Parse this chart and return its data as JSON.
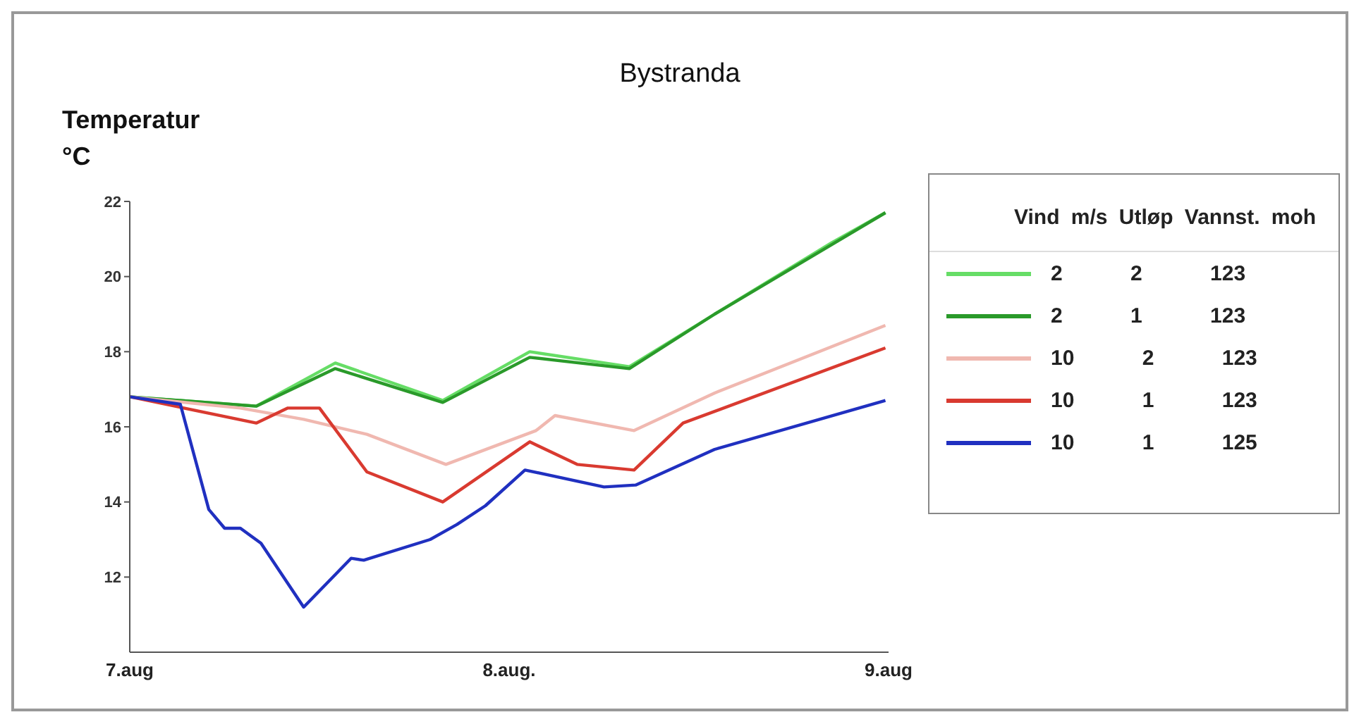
{
  "chart_data": {
    "type": "line",
    "title": "Bystranda",
    "ylabel": "Temperatur °C",
    "legend_title": "Vind m/s Utløp Vannst. moh",
    "xlim": [
      "--08-07",
      "--08-09"
    ],
    "xticks": [
      {
        "value": "--08-07",
        "label": "7.aug"
      },
      {
        "value": "--08-08",
        "label": "8.aug."
      },
      {
        "value": "--08-09",
        "label": "9.aug"
      }
    ],
    "ylim": [
      10,
      22
    ],
    "yticks": [
      12,
      14,
      16,
      18,
      20,
      22
    ],
    "grid": false,
    "legend": "right",
    "marker": "none",
    "line_style": "solid",
    "series": [
      {
        "name": "2 2 123",
        "color": "#66dd66",
        "x": [
          "--08-07T00:00",
          "--08-07T08:00",
          "--08-07T13:00",
          "--08-07T19:48",
          "--08-08T01:18",
          "--08-08T07:36",
          "--08-08T13:00",
          "--08-08T20:24",
          "--08-08T23:48"
        ],
        "values": [
          16.8,
          16.55,
          17.7,
          16.7,
          18.0,
          17.6,
          19.0,
          20.9,
          21.7
        ]
      },
      {
        "name": "2 1 123",
        "color": "#2a9a2a",
        "x": [
          "--08-07T00:00",
          "--08-07T08:00",
          "--08-07T13:00",
          "--08-07T19:48",
          "--08-08T01:18",
          "--08-08T07:36",
          "--08-08T13:00",
          "--08-08T20:24",
          "--08-08T23:48"
        ],
        "values": [
          16.8,
          16.55,
          17.55,
          16.65,
          17.85,
          17.55,
          19.0,
          20.85,
          21.7
        ]
      },
      {
        "name": "10 2 123",
        "color": "#f0b8b0",
        "x": [
          "--08-07T00:00",
          "--08-07T07:00",
          "--08-07T11:00",
          "--08-07T15:00",
          "--08-07T20:00",
          "--08-08T01:42",
          "--08-08T02:54",
          "--08-08T07:54",
          "--08-08T13:00",
          "--08-08T23:48"
        ],
        "values": [
          16.8,
          16.5,
          16.2,
          15.8,
          15.0,
          15.9,
          16.3,
          15.9,
          16.9,
          18.7
        ]
      },
      {
        "name": "10 1 123",
        "color": "#d93a30",
        "x": [
          "--08-07T00:00",
          "--08-07T08:00",
          "--08-07T10:00",
          "--08-07T12:00",
          "--08-07T15:00",
          "--08-07T19:48",
          "--08-08T01:18",
          "--08-08T04:18",
          "--08-08T07:54",
          "--08-08T11:00",
          "--08-08T23:48"
        ],
        "values": [
          16.8,
          16.1,
          16.5,
          16.5,
          14.8,
          14.0,
          15.6,
          15.0,
          14.85,
          16.1,
          18.1
        ]
      },
      {
        "name": "10 1 125",
        "color": "#2030c0",
        "x": [
          "--08-07T00:00",
          "--08-07T03:12",
          "--08-07T05:00",
          "--08-07T06:00",
          "--08-07T07:00",
          "--08-07T08:18",
          "--08-07T11:00",
          "--08-07T14:00",
          "--08-07T14:48",
          "--08-07T19:00",
          "--08-07T20:42",
          "--08-07T22:30",
          "--08-08T01:00",
          "--08-08T06:00",
          "--08-08T08:00",
          "--08-08T13:00",
          "--08-08T23:48"
        ],
        "values": [
          16.8,
          16.6,
          13.8,
          13.3,
          13.3,
          12.9,
          11.2,
          12.5,
          12.45,
          13.0,
          13.4,
          13.9,
          14.85,
          14.4,
          14.45,
          15.4,
          16.7
        ]
      }
    ]
  }
}
